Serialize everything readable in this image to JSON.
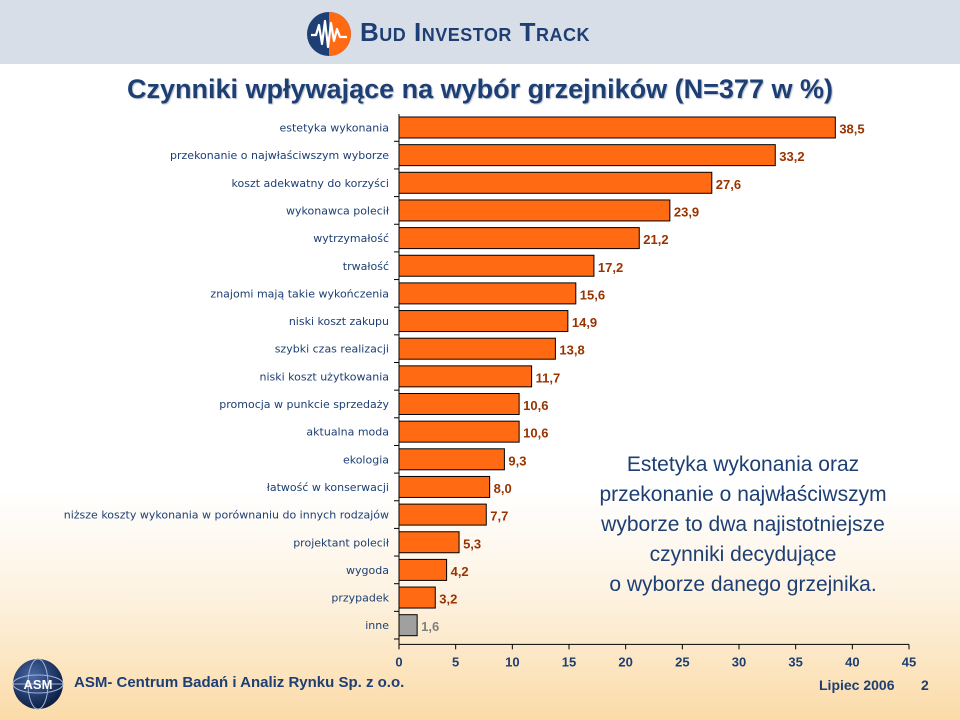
{
  "header": {
    "brand": "Bud Investor Track",
    "logo_icon": "waveform-circle-icon"
  },
  "title": "Czynniki wpływające na wybór grzejników (N=377 w %)",
  "callout": {
    "lines": [
      "Estetyka wykonania oraz",
      "przekonanie o najwłaściwszym",
      "wyborze to dwa najistotniejsze",
      "czynniki decydujące",
      "o wyborze danego grzejnika."
    ]
  },
  "footer": {
    "company": "ASM- Centrum Badań i Analiz Rynku Sp. z o.o.",
    "date": "Lipiec 2006",
    "page_number": "2",
    "logo_text": "ASM"
  },
  "colors": {
    "bar": "#ff6a13",
    "bar_highlight": "#a0a0a0",
    "value_label": "#993300",
    "value_label_highlight": "#808080",
    "text": "#1d3f73"
  },
  "chart_data": {
    "type": "bar",
    "orientation": "horizontal",
    "title": "Czynniki wpływające na wybór grzejników (N=377 w %)",
    "categories": [
      "estetyka wykonania",
      "przekonanie o najwłaściwszym wyborze",
      "koszt adekwatny do korzyści",
      "wykonawca polecił",
      "wytrzymałość",
      "trwałość",
      "znajomi mają takie wykończenia",
      "niski koszt zakupu",
      "szybki czas realizacji",
      "niski koszt użytkowania",
      "promocja w punkcie sprzedaży",
      "aktualna moda",
      "ekologia",
      "łatwość w konserwacji",
      "niższe koszty wykonania w porównaniu do innych rodzajów",
      "projektant polecił",
      "wygoda",
      "przypadek",
      "inne"
    ],
    "values": [
      38.5,
      33.2,
      27.6,
      23.9,
      21.2,
      17.2,
      15.6,
      14.9,
      13.8,
      11.7,
      10.6,
      10.6,
      9.3,
      8.0,
      7.7,
      5.3,
      4.2,
      3.2,
      1.6
    ],
    "value_labels": [
      "38,5",
      "33,2",
      "27,6",
      "23,9",
      "21,2",
      "17,2",
      "15,6",
      "14,9",
      "13,8",
      "11,7",
      "10,6",
      "10,6",
      "9,3",
      "8,0",
      "7,7",
      "5,3",
      "4,2",
      "3,2",
      "1,6"
    ],
    "highlight_index": 18,
    "xlim": [
      0,
      45
    ],
    "xticks": [
      "0",
      "5",
      "10",
      "15",
      "20",
      "25",
      "30",
      "35",
      "40",
      "45"
    ],
    "xlabel": "",
    "ylabel": "",
    "grid": false,
    "legend": "none"
  }
}
